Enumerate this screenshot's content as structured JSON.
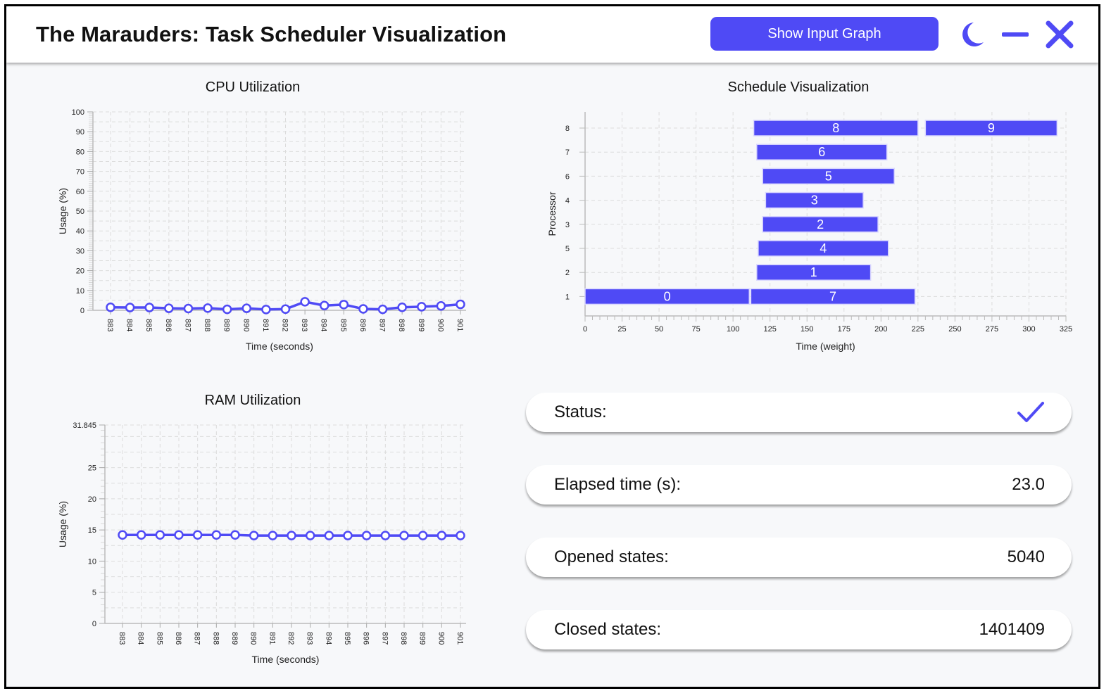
{
  "header": {
    "title": "The Marauders: Task Scheduler Visualization",
    "show_input_graph_label": "Show Input Graph",
    "icons": [
      "moon-icon",
      "minimize-icon",
      "close-icon"
    ],
    "accent_color": "#4f4af5"
  },
  "cpu_panel": {
    "title": "CPU Utilization",
    "xlabel": "Time (seconds)",
    "ylabel": "Usage (%)"
  },
  "ram_panel": {
    "title": "RAM Utilization",
    "xlabel": "Time (seconds)",
    "ylabel": "Usage (%)"
  },
  "schedule_panel": {
    "title": "Schedule Visualization",
    "xlabel": "Time (weight)",
    "ylabel": "Processor"
  },
  "stats": {
    "status_label": "Status:",
    "status_icon": "check-icon",
    "elapsed_label": "Elapsed time (s):",
    "elapsed_value": "23.0",
    "opened_label": "Opened states:",
    "opened_value": "5040",
    "closed_label": "Closed states:",
    "closed_value": "1401409"
  },
  "chart_data": [
    {
      "type": "line",
      "title": "CPU Utilization",
      "xlabel": "Time (seconds)",
      "ylabel": "Usage (%)",
      "x": [
        883,
        884,
        885,
        886,
        887,
        888,
        889,
        890,
        891,
        892,
        893,
        894,
        895,
        896,
        897,
        898,
        899,
        900,
        901
      ],
      "values": [
        1.5,
        1.4,
        1.4,
        1.0,
        0.9,
        1.1,
        0.5,
        1.0,
        0.4,
        0.6,
        4.3,
        2.4,
        2.9,
        0.7,
        0.5,
        1.5,
        1.8,
        2.2,
        3.0
      ],
      "ylim": [
        0,
        100
      ],
      "yticks": [
        0,
        10,
        20,
        30,
        40,
        50,
        60,
        70,
        80,
        90,
        100
      ],
      "grid": true,
      "color": "#4f4af5"
    },
    {
      "type": "line",
      "title": "RAM Utilization",
      "xlabel": "Time (seconds)",
      "ylabel": "Usage (%)",
      "x": [
        883,
        884,
        885,
        886,
        887,
        888,
        889,
        890,
        891,
        892,
        893,
        894,
        895,
        896,
        897,
        898,
        899,
        900,
        901
      ],
      "values": [
        14.2,
        14.2,
        14.2,
        14.2,
        14.2,
        14.2,
        14.2,
        14.1,
        14.1,
        14.1,
        14.1,
        14.1,
        14.1,
        14.1,
        14.1,
        14.1,
        14.1,
        14.1,
        14.1
      ],
      "ylim": [
        0,
        31.845
      ],
      "yticks": [
        0,
        5,
        10,
        15,
        20,
        25,
        31.845
      ],
      "ytick_labels": [
        "0",
        "5",
        "10",
        "15",
        "20",
        "25",
        "31.845"
      ],
      "grid": true,
      "color": "#4f4af5"
    },
    {
      "type": "gantt",
      "title": "Schedule Visualization",
      "xlabel": "Time (weight)",
      "ylabel": "Processor",
      "xlim": [
        0,
        325
      ],
      "xticks": [
        0,
        25,
        50,
        75,
        100,
        125,
        150,
        175,
        200,
        225,
        250,
        275,
        300,
        325
      ],
      "rows": [
        "8",
        "7",
        "6",
        "4",
        "3",
        "5",
        "2",
        "1"
      ],
      "tasks": [
        {
          "label": "8",
          "row": "8",
          "start": 114,
          "end": 225
        },
        {
          "label": "9",
          "row": "8",
          "start": 230,
          "end": 319
        },
        {
          "label": "6",
          "row": "7",
          "start": 116,
          "end": 204
        },
        {
          "label": "5",
          "row": "6",
          "start": 120,
          "end": 209
        },
        {
          "label": "3",
          "row": "4",
          "start": 122,
          "end": 188
        },
        {
          "label": "2",
          "row": "3",
          "start": 120,
          "end": 198
        },
        {
          "label": "4",
          "row": "5",
          "start": 117,
          "end": 205
        },
        {
          "label": "1",
          "row": "2",
          "start": 116,
          "end": 193
        },
        {
          "label": "0",
          "row": "1",
          "start": 0,
          "end": 111
        },
        {
          "label": "7",
          "row": "1",
          "start": 112,
          "end": 223
        }
      ],
      "grid": true,
      "color": "#4f4af5"
    }
  ]
}
